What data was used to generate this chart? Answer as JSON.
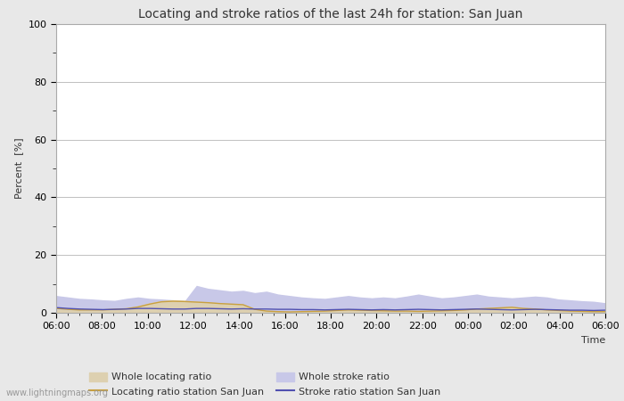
{
  "title": "Locating and stroke ratios of the last 24h for station: San Juan",
  "xlabel": "Time",
  "ylabel": "Percent  [%]",
  "ylim": [
    0,
    100
  ],
  "yticks": [
    0,
    20,
    40,
    60,
    80,
    100
  ],
  "yminor_ticks": [
    10,
    30,
    50,
    70,
    90
  ],
  "x_labels": [
    "06:00",
    "08:00",
    "10:00",
    "12:00",
    "14:00",
    "16:00",
    "18:00",
    "20:00",
    "22:00",
    "00:00",
    "02:00",
    "04:00",
    "06:00"
  ],
  "background_color": "#e8e8e8",
  "plot_bg_color": "#ffffff",
  "grid_color": "#c0c0c0",
  "watermark": "www.lightningmaps.org",
  "whole_locating_fill_color": "#ddd0b0",
  "whole_stroke_fill_color": "#c8c8e8",
  "locating_line_color": "#c8a040",
  "stroke_line_color": "#5050b0",
  "whole_locating_ratio": [
    1.2,
    1.0,
    1.1,
    1.0,
    1.0,
    1.3,
    1.5,
    2.5,
    3.5,
    4.2,
    4.5,
    4.3,
    4.0,
    3.8,
    3.5,
    3.2,
    3.0,
    1.5,
    0.8,
    0.5,
    0.4,
    0.5,
    0.6,
    0.8,
    1.0,
    1.2,
    1.1,
    1.0,
    0.9,
    0.8,
    0.7,
    0.6,
    0.7,
    0.8,
    1.0,
    1.2,
    1.5,
    1.8,
    2.0,
    2.2,
    1.8,
    1.5,
    1.2,
    1.0,
    0.8,
    0.6,
    0.5,
    0.5
  ],
  "whole_stroke_ratio": [
    6.0,
    5.5,
    5.0,
    4.8,
    4.5,
    4.3,
    5.0,
    5.5,
    5.0,
    4.8,
    4.5,
    4.2,
    9.5,
    8.5,
    8.0,
    7.5,
    7.8,
    7.0,
    7.5,
    6.5,
    6.0,
    5.5,
    5.2,
    5.0,
    5.5,
    6.0,
    5.5,
    5.2,
    5.5,
    5.2,
    5.8,
    6.5,
    5.8,
    5.2,
    5.5,
    6.0,
    6.5,
    5.8,
    5.5,
    5.2,
    5.5,
    5.8,
    5.5,
    4.8,
    4.5,
    4.2,
    4.0,
    3.5
  ],
  "locating_station": [
    1.5,
    1.2,
    1.0,
    1.0,
    1.0,
    1.2,
    1.4,
    2.0,
    3.0,
    3.8,
    4.0,
    3.9,
    3.7,
    3.5,
    3.2,
    3.0,
    2.8,
    1.2,
    0.6,
    0.4,
    0.3,
    0.4,
    0.5,
    0.6,
    0.8,
    1.0,
    0.9,
    0.8,
    0.7,
    0.6,
    0.6,
    0.5,
    0.6,
    0.7,
    0.8,
    1.0,
    1.3,
    1.5,
    1.7,
    1.9,
    1.5,
    1.3,
    1.0,
    0.8,
    0.6,
    0.5,
    0.4,
    0.4
  ],
  "stroke_station": [
    1.8,
    1.5,
    1.3,
    1.2,
    1.1,
    1.2,
    1.3,
    1.5,
    1.5,
    1.4,
    1.3,
    1.3,
    1.5,
    1.5,
    1.4,
    1.3,
    1.4,
    1.3,
    1.3,
    1.2,
    1.2,
    1.1,
    1.1,
    1.0,
    1.1,
    1.2,
    1.1,
    1.0,
    1.1,
    1.0,
    1.1,
    1.2,
    1.1,
    1.0,
    1.1,
    1.2,
    1.3,
    1.2,
    1.1,
    1.0,
    1.1,
    1.2,
    1.1,
    1.0,
    0.9,
    0.9,
    0.8,
    0.9
  ]
}
